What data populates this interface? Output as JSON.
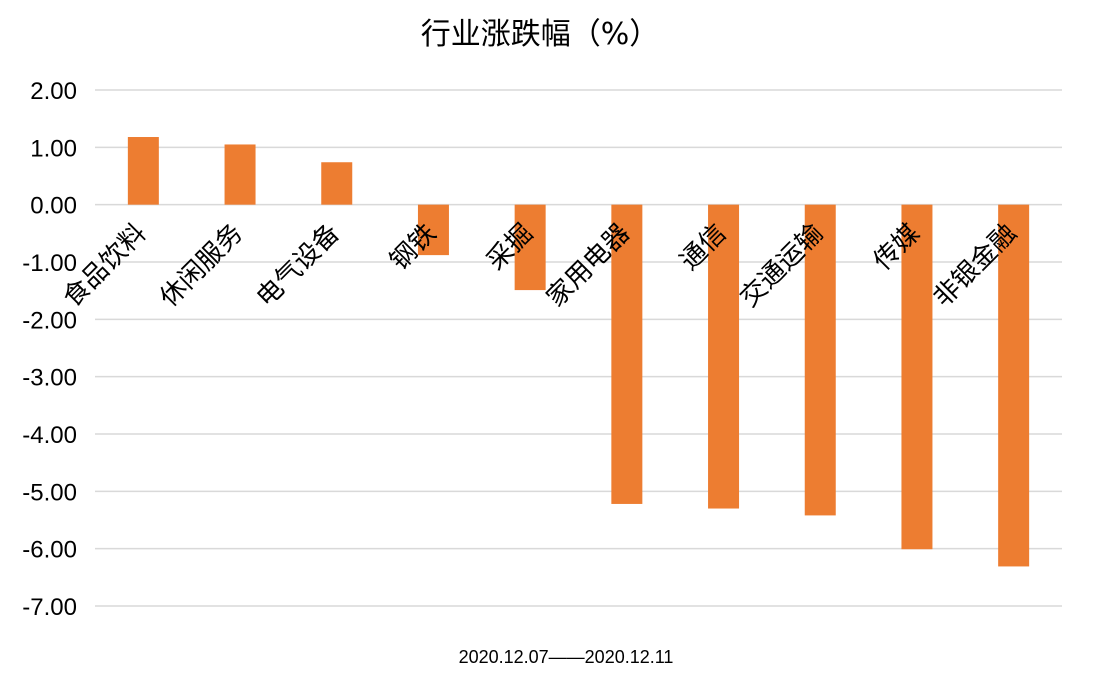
{
  "chart_data": {
    "type": "bar",
    "title": "行业涨跌幅（%）",
    "xlabel": "2020.12.07——2020.12.11",
    "ylabel": "",
    "categories": [
      "食品饮料",
      "休闲服务",
      "电气设备",
      "钢铁",
      "采掘",
      "家用电器",
      "通信",
      "交通运输",
      "传媒",
      "非银金融"
    ],
    "values": [
      1.18,
      1.05,
      0.74,
      -0.88,
      -1.49,
      -5.22,
      -5.3,
      -5.42,
      -6.01,
      -6.31
    ],
    "ylim": [
      -7,
      2
    ],
    "yticks": [
      2,
      1,
      0,
      -1,
      -2,
      -3,
      -4,
      -5,
      -6,
      -7
    ],
    "ytick_labels": [
      "2.00",
      "1.00",
      "0.00",
      "-1.00",
      "-2.00",
      "-3.00",
      "-4.00",
      "-5.00",
      "-6.00",
      "-7.00"
    ],
    "grid": true,
    "legend": "none",
    "bar_color": "#ED7D31",
    "grid_color": "#D9D9D9"
  }
}
